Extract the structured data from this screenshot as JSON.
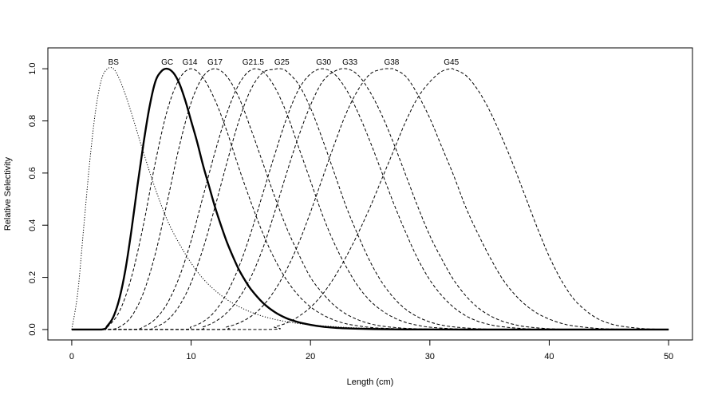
{
  "chart_data": {
    "type": "line",
    "title": "",
    "xlabel": "Length (cm)",
    "ylabel": "Relative Selectivity",
    "xlim": [
      -2,
      52
    ],
    "ylim": [
      -0.04,
      1.08
    ],
    "xticks": [
      0,
      10,
      20,
      30,
      40,
      50
    ],
    "yticks": [
      0.0,
      0.2,
      0.4,
      0.6,
      0.8,
      1.0
    ],
    "xtick_labels": [
      "0",
      "10",
      "20",
      "30",
      "40",
      "50"
    ],
    "ytick_labels": [
      "0.0",
      "0.2",
      "0.4",
      "0.6",
      "0.8",
      "1.0"
    ],
    "grid": false,
    "legend": "none",
    "series": [
      {
        "name": "BS",
        "style": "dotted",
        "x": [
          0,
          0.5,
          1,
          1.5,
          2,
          2.5,
          3,
          3.5,
          4,
          4.5,
          5,
          6,
          7,
          8,
          9,
          10,
          11,
          12,
          13,
          14,
          15,
          16,
          17,
          18,
          19,
          20,
          21,
          22,
          23,
          24,
          25,
          26,
          27,
          28,
          30,
          32,
          35,
          40,
          45,
          50
        ],
        "y": [
          0,
          0.14,
          0.39,
          0.64,
          0.84,
          0.96,
          1.0,
          1.0,
          0.96,
          0.9,
          0.83,
          0.68,
          0.54,
          0.42,
          0.33,
          0.255,
          0.195,
          0.15,
          0.115,
          0.088,
          0.067,
          0.051,
          0.039,
          0.03,
          0.023,
          0.018,
          0.014,
          0.011,
          0.008,
          0.006,
          0.005,
          0.004,
          0.003,
          0.002,
          0.001,
          0.0007,
          0.0003,
          0,
          0,
          0
        ]
      },
      {
        "name": "GC",
        "style": "solid",
        "x": [
          0,
          2.5,
          3,
          3.5,
          4,
          4.5,
          5,
          5.5,
          6,
          6.5,
          7,
          7.5,
          8,
          8.5,
          9,
          9.5,
          10,
          10.5,
          11,
          11.5,
          12,
          12.5,
          13,
          13.5,
          14,
          14.5,
          15,
          16,
          17,
          18,
          19,
          20,
          21,
          22,
          23,
          24,
          26,
          28,
          30,
          35,
          40,
          45,
          50
        ],
        "y": [
          0,
          0,
          0.015,
          0.05,
          0.12,
          0.23,
          0.38,
          0.55,
          0.71,
          0.85,
          0.95,
          0.99,
          1.0,
          0.985,
          0.945,
          0.88,
          0.8,
          0.72,
          0.63,
          0.55,
          0.47,
          0.4,
          0.335,
          0.28,
          0.23,
          0.19,
          0.155,
          0.103,
          0.067,
          0.043,
          0.028,
          0.018,
          0.011,
          0.007,
          0.0045,
          0.003,
          0.0012,
          0.0005,
          0.0002,
          0,
          0,
          0,
          0
        ]
      },
      {
        "name": "G14",
        "style": "dashed",
        "x": [
          0,
          2.5,
          3,
          4,
          5,
          6,
          7,
          8,
          9,
          10,
          11,
          12,
          13,
          14,
          15,
          16,
          17,
          18,
          19,
          20,
          21,
          22,
          23,
          24,
          25,
          26,
          28,
          30,
          35,
          40,
          45,
          50
        ],
        "y": [
          0,
          0,
          0.01,
          0.07,
          0.2,
          0.4,
          0.64,
          0.84,
          0.96,
          1.0,
          0.965,
          0.88,
          0.76,
          0.62,
          0.49,
          0.37,
          0.27,
          0.19,
          0.13,
          0.087,
          0.057,
          0.036,
          0.022,
          0.014,
          0.008,
          0.005,
          0.0017,
          0.0005,
          0,
          0,
          0,
          0
        ]
      },
      {
        "name": "G17",
        "style": "dashed",
        "x": [
          0,
          3,
          4,
          5,
          6,
          7,
          8,
          9,
          10,
          11,
          12,
          13,
          14,
          15,
          16,
          17,
          18,
          19,
          20,
          21,
          22,
          23,
          24,
          25,
          26,
          27,
          28,
          30,
          32,
          35,
          40,
          45,
          50
        ],
        "y": [
          0,
          0,
          0.01,
          0.05,
          0.14,
          0.29,
          0.49,
          0.7,
          0.87,
          0.97,
          1.0,
          0.97,
          0.89,
          0.77,
          0.64,
          0.51,
          0.39,
          0.29,
          0.2,
          0.14,
          0.092,
          0.059,
          0.037,
          0.022,
          0.013,
          0.008,
          0.0045,
          0.0013,
          0.0003,
          0,
          0,
          0,
          0
        ]
      },
      {
        "name": "G21.5",
        "style": "dashed",
        "x": [
          0,
          5,
          6,
          7,
          8,
          9,
          10,
          11,
          12,
          13,
          14,
          15,
          16,
          17,
          18,
          19,
          20,
          21,
          22,
          23,
          24,
          25,
          26,
          27,
          28,
          29,
          30,
          32,
          34,
          36,
          40,
          45,
          50
        ],
        "y": [
          0,
          0,
          0.01,
          0.04,
          0.1,
          0.2,
          0.34,
          0.51,
          0.68,
          0.83,
          0.94,
          0.995,
          0.99,
          0.93,
          0.83,
          0.7,
          0.57,
          0.44,
          0.33,
          0.24,
          0.165,
          0.11,
          0.072,
          0.045,
          0.027,
          0.016,
          0.009,
          0.0028,
          0.0008,
          0.0002,
          0,
          0,
          0
        ]
      },
      {
        "name": "G25",
        "style": "dashed",
        "x": [
          0,
          6,
          7,
          8,
          9,
          10,
          11,
          12,
          13,
          14,
          15,
          16,
          17,
          17.5,
          18,
          19,
          20,
          21,
          22,
          23,
          24,
          25,
          26,
          27,
          28,
          29,
          30,
          31,
          32,
          34,
          36,
          40,
          45,
          50
        ],
        "y": [
          0,
          0,
          0.01,
          0.035,
          0.09,
          0.18,
          0.31,
          0.47,
          0.64,
          0.8,
          0.92,
          0.985,
          0.998,
          1.0,
          0.99,
          0.94,
          0.85,
          0.73,
          0.6,
          0.47,
          0.36,
          0.26,
          0.18,
          0.12,
          0.077,
          0.048,
          0.029,
          0.017,
          0.01,
          0.003,
          0.0008,
          0,
          0,
          0
        ]
      },
      {
        "name": "G30",
        "style": "dashed",
        "x": [
          0,
          9,
          10,
          11,
          12,
          13,
          14,
          15,
          16,
          17,
          18,
          19,
          20,
          21,
          22,
          23,
          24,
          25,
          26,
          27,
          28,
          29,
          30,
          31,
          32,
          33,
          34,
          35,
          36,
          38,
          40,
          45,
          50
        ],
        "y": [
          0,
          0,
          0.01,
          0.03,
          0.07,
          0.14,
          0.24,
          0.37,
          0.52,
          0.67,
          0.81,
          0.92,
          0.98,
          1.0,
          0.98,
          0.92,
          0.83,
          0.72,
          0.6,
          0.48,
          0.37,
          0.27,
          0.19,
          0.13,
          0.085,
          0.053,
          0.032,
          0.019,
          0.011,
          0.003,
          0.0008,
          0,
          0
        ]
      },
      {
        "name": "G33",
        "style": "dashed",
        "x": [
          0,
          10,
          11,
          12,
          13,
          14,
          15,
          16,
          17,
          18,
          19,
          20,
          21,
          22,
          23,
          24,
          25,
          26,
          27,
          28,
          29,
          30,
          31,
          32,
          33,
          34,
          35,
          36,
          37,
          38,
          40,
          42,
          45,
          50
        ],
        "y": [
          0,
          0,
          0.01,
          0.03,
          0.065,
          0.12,
          0.2,
          0.31,
          0.45,
          0.6,
          0.74,
          0.86,
          0.95,
          0.99,
          1.0,
          0.975,
          0.91,
          0.82,
          0.71,
          0.59,
          0.47,
          0.36,
          0.27,
          0.19,
          0.13,
          0.085,
          0.054,
          0.033,
          0.02,
          0.011,
          0.003,
          0.0008,
          0,
          0
        ]
      },
      {
        "name": "G38",
        "style": "dashed",
        "x": [
          0,
          12,
          13,
          14,
          15,
          16,
          17,
          18,
          19,
          20,
          21,
          22,
          23,
          24,
          25,
          26,
          26.7,
          27,
          28,
          29,
          30,
          31,
          32,
          33,
          34,
          35,
          36,
          37,
          38,
          39,
          40,
          41,
          42,
          44,
          46,
          50
        ],
        "y": [
          0,
          0,
          0.01,
          0.025,
          0.05,
          0.09,
          0.15,
          0.23,
          0.33,
          0.45,
          0.58,
          0.71,
          0.83,
          0.92,
          0.98,
          0.998,
          1.0,
          0.998,
          0.97,
          0.9,
          0.81,
          0.7,
          0.59,
          0.47,
          0.37,
          0.28,
          0.2,
          0.14,
          0.095,
          0.062,
          0.04,
          0.024,
          0.014,
          0.0045,
          0.0012,
          0
        ]
      },
      {
        "name": "G45",
        "style": "dashed",
        "x": [
          0,
          16,
          17,
          18,
          19,
          20,
          21,
          22,
          23,
          24,
          25,
          26,
          27,
          28,
          29,
          30,
          31,
          31.8,
          32,
          33,
          34,
          35,
          36,
          37,
          38,
          39,
          40,
          41,
          42,
          43,
          44,
          45,
          46,
          48,
          50
        ],
        "y": [
          0,
          0,
          0.01,
          0.025,
          0.05,
          0.085,
          0.135,
          0.2,
          0.28,
          0.37,
          0.47,
          0.58,
          0.69,
          0.8,
          0.89,
          0.95,
          0.99,
          1.0,
          0.998,
          0.975,
          0.92,
          0.84,
          0.74,
          0.63,
          0.51,
          0.39,
          0.28,
          0.19,
          0.12,
          0.075,
          0.043,
          0.024,
          0.013,
          0.003,
          0.0006
        ]
      }
    ],
    "annotations": [
      {
        "text": "BS",
        "x": 3.5,
        "y": 1.0
      },
      {
        "text": "GC",
        "x": 8.0,
        "y": 1.0
      },
      {
        "text": "G14",
        "x": 9.9,
        "y": 1.0
      },
      {
        "text": "G17",
        "x": 12.0,
        "y": 1.0
      },
      {
        "text": "G21.5",
        "x": 15.2,
        "y": 1.0
      },
      {
        "text": "G25",
        "x": 17.6,
        "y": 1.0
      },
      {
        "text": "G30",
        "x": 21.1,
        "y": 1.0
      },
      {
        "text": "G33",
        "x": 23.3,
        "y": 1.0
      },
      {
        "text": "G38",
        "x": 26.8,
        "y": 1.0
      },
      {
        "text": "G45",
        "x": 31.8,
        "y": 1.0
      }
    ]
  }
}
